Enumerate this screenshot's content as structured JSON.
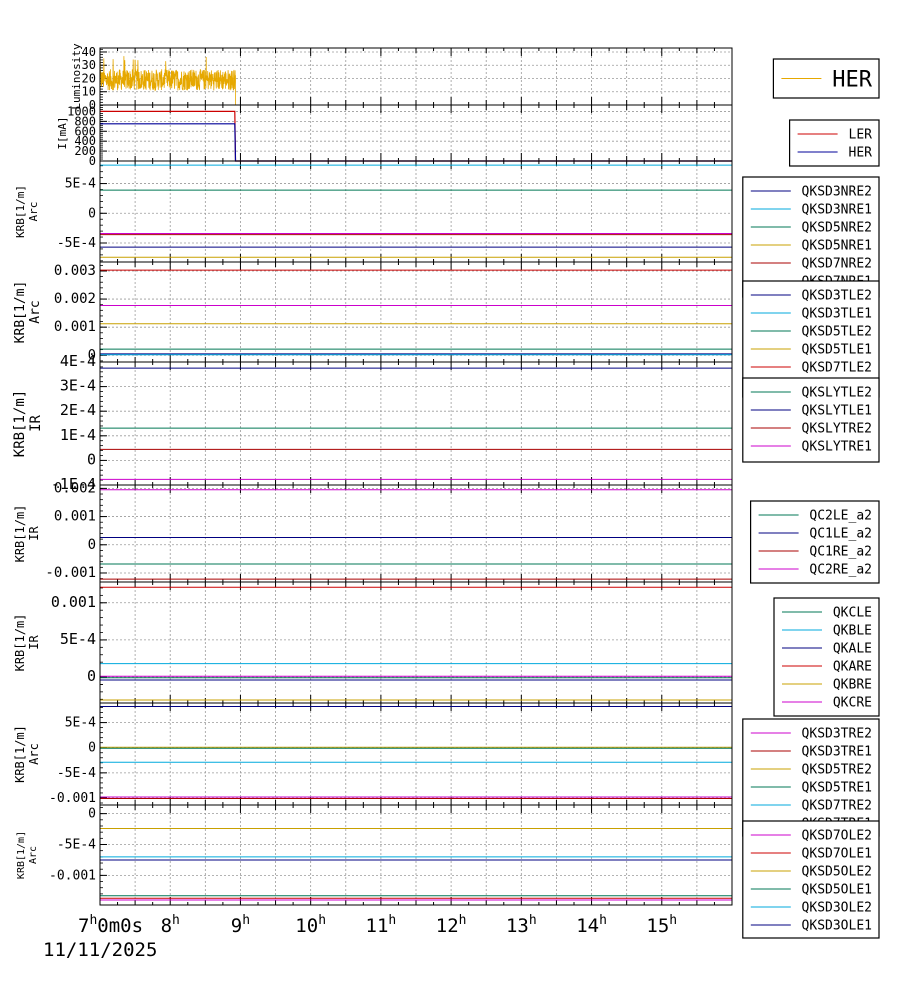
{
  "chart_data": {
    "type": "line",
    "time_axis": {
      "range_h": [
        7,
        16
      ],
      "tick_labels": [
        {
          "h": 7,
          "text": "7",
          "sup": "h"
        },
        {
          "h": 8,
          "text": "8",
          "sup": "h"
        },
        {
          "h": 9,
          "text": "9",
          "sup": "h"
        },
        {
          "h": 10,
          "text": "10",
          "sup": "h"
        },
        {
          "h": 11,
          "text": "11",
          "sup": "h"
        },
        {
          "h": 12,
          "text": "12",
          "sup": "h"
        },
        {
          "h": 13,
          "text": "13",
          "sup": "h"
        },
        {
          "h": 14,
          "text": "14",
          "sup": "h"
        },
        {
          "h": 15,
          "text": "15",
          "sup": "h"
        }
      ],
      "start_suffix": "0m0s",
      "date": "11/11/2025"
    },
    "panels": [
      {
        "id": "luminosity",
        "ylabel": [
          "Luminosity"
        ],
        "ylim": [
          0,
          43
        ],
        "yticks": [
          {
            "v": 0,
            "t": "0"
          },
          {
            "v": 10,
            "t": "10"
          },
          {
            "v": 20,
            "t": "20"
          },
          {
            "v": 30,
            "t": "30"
          },
          {
            "v": 40,
            "t": "40"
          }
        ],
        "legend": {
          "big": true,
          "items": [
            {
              "name": "HER",
              "color": "#e6a800"
            }
          ]
        },
        "series": [
          {
            "name": "HER",
            "color": "#e6a800",
            "noise": {
              "t0": 7.0,
              "t1": 8.93,
              "mean": 19,
              "amp": 8,
              "spikes": 37
            },
            "after": 0
          }
        ]
      },
      {
        "id": "current",
        "ylabel": [
          "I[mA]"
        ],
        "ylim": [
          0,
          1130
        ],
        "yticks": [
          {
            "v": 0,
            "t": "0"
          },
          {
            "v": 200,
            "t": "200"
          },
          {
            "v": 400,
            "t": "400"
          },
          {
            "v": 600,
            "t": "600"
          },
          {
            "v": 800,
            "t": "800"
          },
          {
            "v": 1000,
            "t": "1000"
          }
        ],
        "legend": {
          "items": [
            {
              "name": "LER",
              "color": "#cc0000"
            },
            {
              "name": "HER",
              "color": "#000099"
            }
          ]
        },
        "series": [
          {
            "name": "LER",
            "color": "#cc0000",
            "points": [
              [
                7.0,
                1000
              ],
              [
                8.92,
                1000
              ],
              [
                8.93,
                0
              ],
              [
                16.0,
                0
              ]
            ]
          },
          {
            "name": "HER",
            "color": "#000099",
            "points": [
              [
                7.0,
                750
              ],
              [
                8.92,
                750
              ],
              [
                8.93,
                0
              ],
              [
                16.0,
                0
              ]
            ]
          }
        ]
      },
      {
        "id": "arc-ne",
        "ylabel": [
          "KRB[1/m]",
          "Arc"
        ],
        "ylim": [
          -0.00082,
          0.00088
        ],
        "yticks": [
          {
            "v": -0.0005,
            "t": "-5E-4"
          },
          {
            "v": 0,
            "t": "0"
          },
          {
            "v": 0.0005,
            "t": "5E-4"
          }
        ],
        "legend": {
          "items": [
            {
              "name": "QKSD3NRE2",
              "color": "#000080"
            },
            {
              "name": "QKSD3NRE1",
              "color": "#00aadd"
            },
            {
              "name": "QKSD5NRE2",
              "color": "#007755"
            },
            {
              "name": "QKSD5NRE1",
              "color": "#c8a000"
            },
            {
              "name": "QKSD7NRE2",
              "color": "#aa0000"
            },
            {
              "name": "QKSD7NRE1",
              "color": "#000060"
            }
          ]
        },
        "series": [
          {
            "name": "QKSD3NRE2",
            "color": "#000080",
            "value": -0.00057
          },
          {
            "name": "QKSD3NRE1",
            "color": "#00aadd",
            "value": 0.00081
          },
          {
            "name": "QKSD5NRE2",
            "color": "#007755",
            "value": 0.00039
          },
          {
            "name": "QKSD5NRE1",
            "color": "#c8a000",
            "value": -0.00074
          },
          {
            "name": "QKSD7NRE2",
            "color": "#aa0000",
            "value": -0.00036
          },
          {
            "name": "QKSD7NRE1",
            "color": "#cc00cc",
            "value": -0.00034
          }
        ]
      },
      {
        "id": "arc-tle",
        "ylabel": [
          "KRB[1/m]",
          "Arc"
        ],
        "ylim": [
          -0.00024,
          0.00332
        ],
        "yticks": [
          {
            "v": 0,
            "t": "0"
          },
          {
            "v": 0.001,
            "t": "0.001"
          },
          {
            "v": 0.002,
            "t": "0.002"
          },
          {
            "v": 0.003,
            "t": "0.003"
          }
        ],
        "legend": {
          "items": [
            {
              "name": "QKSD3TLE2",
              "color": "#000080"
            },
            {
              "name": "QKSD3TLE1",
              "color": "#00aadd"
            },
            {
              "name": "QKSD5TLE2",
              "color": "#007755"
            },
            {
              "name": "QKSD5TLE1",
              "color": "#c8a000"
            },
            {
              "name": "QKSD7TLE2",
              "color": "#cc0000"
            },
            {
              "name": "QKSD7TLE1",
              "color": "#cc00cc"
            }
          ]
        },
        "series": [
          {
            "name": "QKSD3TLE2",
            "color": "#000080",
            "value": 5e-05
          },
          {
            "name": "QKSD3TLE1",
            "color": "#00aadd",
            "value": 2e-05
          },
          {
            "name": "QKSD5TLE2",
            "color": "#007755",
            "value": 0.00022
          },
          {
            "name": "QKSD5TLE1",
            "color": "#c8a000",
            "value": 0.00112
          },
          {
            "name": "QKSD7TLE2",
            "color": "#cc0000",
            "value": 0.00303
          },
          {
            "name": "QKSD7TLE1",
            "color": "#cc00cc",
            "value": 0.00177
          }
        ]
      },
      {
        "id": "ir-sly",
        "ylabel": [
          "KRB[1/m]",
          "IR"
        ],
        "ylim": [
          -0.0001,
          0.0004
        ],
        "yticks": [
          {
            "v": -0.0001,
            "t": "-1E-4"
          },
          {
            "v": 0,
            "t": "0"
          },
          {
            "v": 0.0001,
            "t": "1E-4"
          },
          {
            "v": 0.0002,
            "t": "2E-4"
          },
          {
            "v": 0.0003,
            "t": "3E-4"
          },
          {
            "v": 0.0004,
            "t": "4E-4"
          }
        ],
        "legend": {
          "items": [
            {
              "name": "QKSLYTLE2",
              "color": "#007755"
            },
            {
              "name": "QKSLYTLE1",
              "color": "#000080"
            },
            {
              "name": "QKSLYTRE2",
              "color": "#aa0000"
            },
            {
              "name": "QKSLYTRE1",
              "color": "#cc00cc"
            }
          ]
        },
        "series": [
          {
            "name": "QKSLYTLE2",
            "color": "#007755",
            "value": 0.000131
          },
          {
            "name": "QKSLYTLE1",
            "color": "#000080",
            "value": 0.000375
          },
          {
            "name": "QKSLYTRE2",
            "color": "#aa0000",
            "value": 4.5e-05
          },
          {
            "name": "QKSLYTRE1",
            "color": "#cc00cc",
            "value": -7.7e-05
          }
        ]
      },
      {
        "id": "ir-qc",
        "ylabel": [
          "KRB[1/m]",
          "IR"
        ],
        "ylim": [
          -0.00132,
          0.00212
        ],
        "yticks": [
          {
            "v": -0.001,
            "t": "-0.001"
          },
          {
            "v": 0,
            "t": "0"
          },
          {
            "v": 0.001,
            "t": "0.001"
          },
          {
            "v": 0.002,
            "t": "0.002"
          }
        ],
        "legend": {
          "items": [
            {
              "name": "QC2LE_a2",
              "color": "#007755"
            },
            {
              "name": "QC1LE_a2",
              "color": "#000080"
            },
            {
              "name": "QC1RE_a2",
              "color": "#aa0000"
            },
            {
              "name": "QC2RE_a2",
              "color": "#cc00cc"
            }
          ]
        },
        "series": [
          {
            "name": "QC2LE_a2",
            "color": "#007755",
            "value": -0.00068
          },
          {
            "name": "QC1LE_a2",
            "color": "#000080",
            "value": 0.00026
          },
          {
            "name": "QC1RE_a2",
            "color": "#aa0000",
            "value": -0.00122
          },
          {
            "name": "QC2RE_a2",
            "color": "#cc00cc",
            "value": 0.00195
          }
        ]
      },
      {
        "id": "ir-qk",
        "ylabel": [
          "KRB[1/m]",
          "IR"
        ],
        "ylim": [
          -0.00035,
          0.00128
        ],
        "yticks": [
          {
            "v": 0,
            "t": "0"
          },
          {
            "v": 0.0005,
            "t": "5E-4"
          },
          {
            "v": 0.001,
            "t": "0.001"
          }
        ],
        "legend": {
          "items": [
            {
              "name": "QKCLE",
              "color": "#007755"
            },
            {
              "name": "QKBLE",
              "color": "#00aadd"
            },
            {
              "name": "QKALE",
              "color": "#000080"
            },
            {
              "name": "QKARE",
              "color": "#cc0000"
            },
            {
              "name": "QKBRE",
              "color": "#c8a000"
            },
            {
              "name": "QKCRE",
              "color": "#cc00cc"
            }
          ]
        },
        "series": [
          {
            "name": "QKCLE",
            "color": "#007755",
            "value": -1e-05
          },
          {
            "name": "QKBLE",
            "color": "#00aadd",
            "value": 0.00018
          },
          {
            "name": "QKALE",
            "color": "#000080",
            "value": -4e-05
          },
          {
            "name": "QKARE",
            "color": "#cc0000",
            "value": 0.00121
          },
          {
            "name": "QKBRE",
            "color": "#c8a000",
            "value": -0.00031
          },
          {
            "name": "QKCRE",
            "color": "#cc00cc",
            "value": 1e-05
          }
        ]
      },
      {
        "id": "arc-tre",
        "ylabel": [
          "KRB[1/m]",
          "Arc"
        ],
        "ylim": [
          -0.00114,
          0.00089
        ],
        "yticks": [
          {
            "v": -0.001,
            "t": "-0.001"
          },
          {
            "v": -0.0005,
            "t": "-5E-4"
          },
          {
            "v": 0,
            "t": "0"
          },
          {
            "v": 0.0005,
            "t": "5E-4"
          }
        ],
        "legend": {
          "items": [
            {
              "name": "QKSD3TRE2",
              "color": "#cc00cc"
            },
            {
              "name": "QKSD3TRE1",
              "color": "#aa0000"
            },
            {
              "name": "QKSD5TRE2",
              "color": "#c8a000"
            },
            {
              "name": "QKSD5TRE1",
              "color": "#007755"
            },
            {
              "name": "QKSD7TRE2",
              "color": "#00aadd"
            },
            {
              "name": "QKSD7TRE1",
              "color": "#000080"
            }
          ]
        },
        "series": [
          {
            "name": "QKSD3TRE2",
            "color": "#cc00cc",
            "value": -0.00098
          },
          {
            "name": "QKSD3TRE1",
            "color": "#aa0000",
            "value": -0.00101
          },
          {
            "name": "QKSD5TRE2",
            "color": "#c8a000",
            "value": 1e-05
          },
          {
            "name": "QKSD5TRE1",
            "color": "#007755",
            "value": -1e-05
          },
          {
            "name": "QKSD7TRE2",
            "color": "#00aadd",
            "value": -0.00029
          },
          {
            "name": "QKSD7TRE1",
            "color": "#000080",
            "value": 0.00082
          }
        ]
      },
      {
        "id": "arc-ole",
        "ylabel": [
          "KRB[1/m]",
          "Arc"
        ],
        "ylim": [
          -0.00148,
          0.00014
        ],
        "yticks": [
          {
            "v": -0.001,
            "t": "-0.001"
          },
          {
            "v": -0.0005,
            "t": "-5E-4"
          },
          {
            "v": 0,
            "t": "0"
          }
        ],
        "legend": {
          "items": [
            {
              "name": "QKSD7OLE2",
              "color": "#cc00cc"
            },
            {
              "name": "QKSD7OLE1",
              "color": "#cc0000"
            },
            {
              "name": "QKSD5OLE2",
              "color": "#c8a000"
            },
            {
              "name": "QKSD5OLE1",
              "color": "#007755"
            },
            {
              "name": "QKSD3OLE2",
              "color": "#00aadd"
            },
            {
              "name": "QKSD3OLE1",
              "color": "#000080"
            }
          ]
        },
        "series": [
          {
            "name": "QKSD7OLE2",
            "color": "#cc00cc",
            "value": -0.0014
          },
          {
            "name": "QKSD7OLE1",
            "color": "#cc0000",
            "value": -0.00137
          },
          {
            "name": "QKSD5OLE2",
            "color": "#c8a000",
            "value": -0.00024
          },
          {
            "name": "QKSD5OLE1",
            "color": "#007755",
            "value": -0.00133
          },
          {
            "name": "QKSD3OLE2",
            "color": "#00aadd",
            "value": -0.0007
          },
          {
            "name": "QKSD3OLE1",
            "color": "#000080",
            "value": -0.00075
          }
        ]
      }
    ]
  }
}
